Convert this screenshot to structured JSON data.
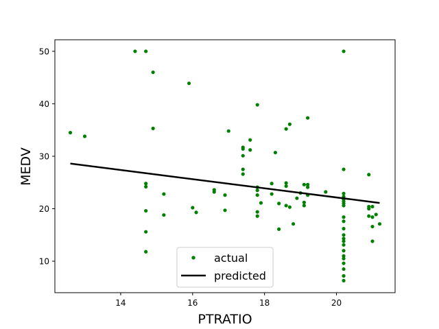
{
  "chart_data": {
    "type": "scatter",
    "title": "",
    "xlabel": "PTRATIO",
    "ylabel": "MEDV",
    "xlim": [
      12.17,
      21.63
    ],
    "ylim": [
      4.0,
      52.2
    ],
    "x_ticks": [
      14,
      16,
      18,
      20
    ],
    "y_ticks": [
      10,
      20,
      30,
      40,
      50
    ],
    "grid": false,
    "legend_position": "lower-center",
    "series": [
      {
        "name": "actual",
        "kind": "points",
        "color": "#008000",
        "points": [
          [
            12.6,
            34.5
          ],
          [
            13.0,
            33.8
          ],
          [
            14.4,
            50.0
          ],
          [
            14.7,
            50.0
          ],
          [
            14.9,
            46.0
          ],
          [
            14.9,
            35.3
          ],
          [
            14.7,
            24.8
          ],
          [
            14.7,
            24.2
          ],
          [
            15.2,
            22.8
          ],
          [
            14.7,
            19.6
          ],
          [
            15.2,
            18.8
          ],
          [
            14.7,
            15.6
          ],
          [
            14.7,
            11.8
          ],
          [
            15.9,
            43.9
          ],
          [
            16.0,
            20.2
          ],
          [
            16.1,
            19.3
          ],
          [
            16.6,
            23.6
          ],
          [
            16.6,
            23.2
          ],
          [
            16.9,
            22.6
          ],
          [
            16.9,
            19.7
          ],
          [
            17.0,
            34.8
          ],
          [
            17.4,
            31.7
          ],
          [
            17.4,
            31.4
          ],
          [
            17.4,
            30.1
          ],
          [
            17.4,
            27.5
          ],
          [
            17.4,
            26.6
          ],
          [
            17.6,
            33.1
          ],
          [
            17.6,
            31.2
          ],
          [
            17.8,
            39.8
          ],
          [
            17.8,
            24.1
          ],
          [
            17.8,
            23.5
          ],
          [
            17.8,
            22.6
          ],
          [
            17.8,
            19.4
          ],
          [
            17.8,
            18.6
          ],
          [
            17.9,
            21.1
          ],
          [
            18.2,
            24.8
          ],
          [
            18.2,
            22.8
          ],
          [
            18.3,
            30.7
          ],
          [
            18.4,
            21.0
          ],
          [
            18.4,
            16.1
          ],
          [
            18.6,
            35.2
          ],
          [
            18.6,
            24.9
          ],
          [
            18.6,
            24.3
          ],
          [
            18.6,
            20.6
          ],
          [
            18.7,
            36.1
          ],
          [
            18.7,
            20.3
          ],
          [
            18.8,
            17.1
          ],
          [
            18.9,
            22.0
          ],
          [
            19.0,
            23.0
          ],
          [
            19.1,
            24.6
          ],
          [
            19.1,
            21.2
          ],
          [
            19.1,
            20.6
          ],
          [
            19.2,
            37.3
          ],
          [
            19.2,
            24.6
          ],
          [
            19.2,
            24.1
          ],
          [
            19.2,
            22.6
          ],
          [
            19.7,
            23.2
          ],
          [
            20.2,
            50.0
          ],
          [
            20.2,
            27.5
          ],
          [
            20.2,
            22.9
          ],
          [
            20.2,
            22.3
          ],
          [
            20.2,
            21.8
          ],
          [
            20.2,
            21.4
          ],
          [
            20.2,
            21.0
          ],
          [
            20.2,
            20.6
          ],
          [
            20.2,
            18.4
          ],
          [
            20.2,
            17.6
          ],
          [
            20.2,
            16.2
          ],
          [
            20.2,
            15.0
          ],
          [
            20.2,
            14.3
          ],
          [
            20.2,
            13.8
          ],
          [
            20.2,
            13.1
          ],
          [
            20.2,
            12.0
          ],
          [
            20.2,
            11.0
          ],
          [
            20.2,
            10.5
          ],
          [
            20.2,
            9.6
          ],
          [
            20.2,
            8.5
          ],
          [
            20.2,
            7.2
          ],
          [
            20.2,
            6.3
          ],
          [
            20.9,
            26.5
          ],
          [
            20.9,
            20.4
          ],
          [
            20.9,
            20.0
          ],
          [
            20.9,
            18.6
          ],
          [
            21.0,
            20.4
          ],
          [
            21.0,
            18.4
          ],
          [
            21.0,
            16.6
          ],
          [
            21.0,
            13.8
          ],
          [
            21.1,
            18.9
          ],
          [
            21.2,
            17.1
          ]
        ]
      },
      {
        "name": "predicted",
        "kind": "line",
        "color": "#000000",
        "points": [
          [
            12.6,
            28.6
          ],
          [
            21.2,
            21.1
          ]
        ]
      }
    ]
  }
}
